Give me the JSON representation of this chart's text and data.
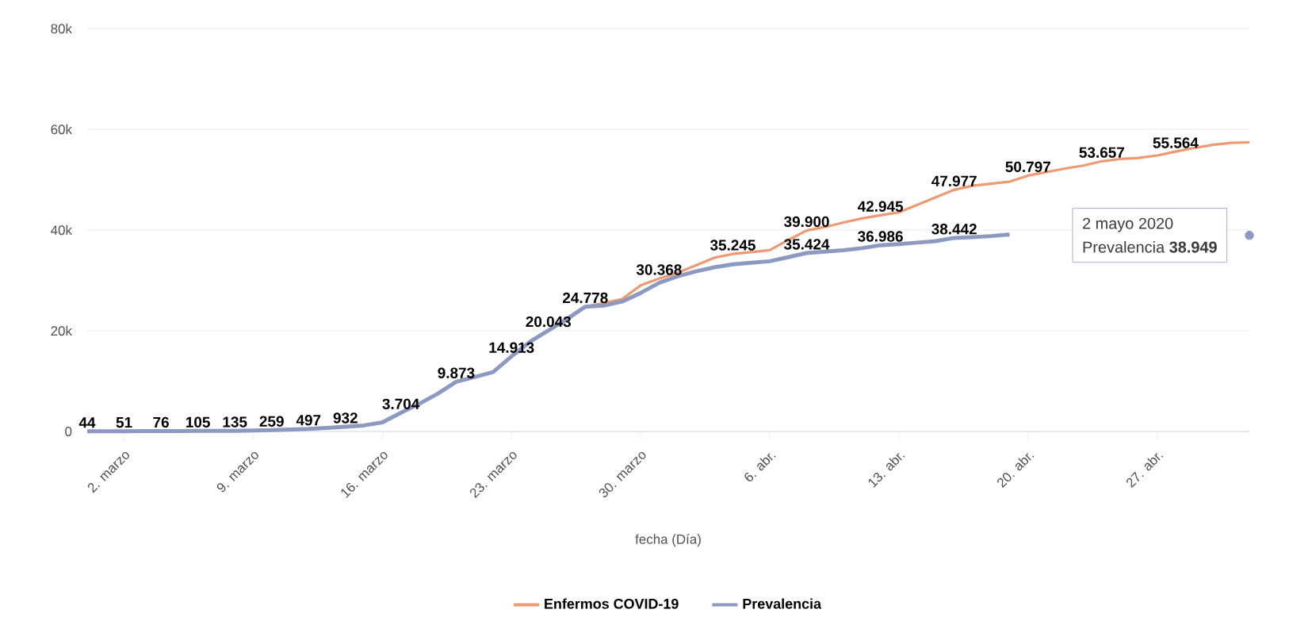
{
  "chart_data": {
    "type": "line",
    "xlabel": "fecha (Día)",
    "x": [
      "2020-02-29",
      "2020-03-01",
      "2020-03-02",
      "2020-03-03",
      "2020-03-04",
      "2020-03-05",
      "2020-03-06",
      "2020-03-07",
      "2020-03-08",
      "2020-03-09",
      "2020-03-10",
      "2020-03-11",
      "2020-03-12",
      "2020-03-13",
      "2020-03-14",
      "2020-03-15",
      "2020-03-16",
      "2020-03-17",
      "2020-03-18",
      "2020-03-19",
      "2020-03-20",
      "2020-03-21",
      "2020-03-22",
      "2020-03-23",
      "2020-03-24",
      "2020-03-25",
      "2020-03-26",
      "2020-03-27",
      "2020-03-28",
      "2020-03-29",
      "2020-03-30",
      "2020-03-31",
      "2020-04-01",
      "2020-04-02",
      "2020-04-03",
      "2020-04-04",
      "2020-04-05",
      "2020-04-06",
      "2020-04-07",
      "2020-04-08",
      "2020-04-09",
      "2020-04-10",
      "2020-04-11",
      "2020-04-12",
      "2020-04-13",
      "2020-04-14",
      "2020-04-15",
      "2020-04-16",
      "2020-04-17",
      "2020-04-18",
      "2020-04-19",
      "2020-04-20",
      "2020-04-21",
      "2020-04-22",
      "2020-04-23",
      "2020-04-24",
      "2020-04-25",
      "2020-04-26",
      "2020-04-27",
      "2020-04-28",
      "2020-04-29",
      "2020-04-30",
      "2020-05-01",
      "2020-05-02"
    ],
    "series": [
      {
        "name": "Enfermos COVID-19",
        "color": "#ed9a73",
        "values": [
          null,
          null,
          null,
          null,
          null,
          null,
          null,
          null,
          null,
          null,
          null,
          null,
          null,
          null,
          null,
          null,
          null,
          null,
          null,
          null,
          null,
          null,
          null,
          null,
          null,
          null,
          null,
          24778,
          25500,
          26300,
          29000,
          30368,
          31500,
          33000,
          34500,
          35245,
          35600,
          36000,
          38000,
          39900,
          40600,
          41500,
          42300,
          42945,
          43500,
          45000,
          46500,
          47977,
          48800,
          49200,
          49600,
          50797,
          51500,
          52200,
          52800,
          53657,
          54100,
          54300,
          54800,
          55564,
          56300,
          56900,
          57300,
          57400
        ],
        "value_labels": [
          null,
          null,
          null,
          null,
          null,
          null,
          null,
          null,
          null,
          null,
          null,
          null,
          null,
          null,
          null,
          null,
          null,
          null,
          null,
          null,
          null,
          null,
          null,
          null,
          null,
          null,
          null,
          "24.778",
          null,
          null,
          null,
          "30.368",
          null,
          null,
          null,
          "35.245",
          null,
          null,
          null,
          "39.900",
          null,
          null,
          null,
          "42.945",
          null,
          null,
          null,
          "47.977",
          null,
          null,
          null,
          "50.797",
          null,
          null,
          null,
          "53.657",
          null,
          null,
          null,
          "55.564",
          null,
          null,
          null,
          null
        ]
      },
      {
        "name": "Prevalencia",
        "color": "#8c99c0",
        "values": [
          44,
          50,
          51,
          60,
          76,
          90,
          105,
          120,
          135,
          200,
          259,
          400,
          497,
          700,
          932,
          1200,
          1800,
          3704,
          5500,
          7500,
          9873,
          10800,
          11800,
          14913,
          17800,
          20043,
          22300,
          24778,
          25000,
          25800,
          27500,
          29500,
          30800,
          31800,
          32600,
          33200,
          33500,
          33800,
          34600,
          35424,
          35700,
          36000,
          36400,
          36986,
          37200,
          37500,
          37800,
          38442,
          38600,
          38800,
          39100,
          null,
          null,
          null,
          null,
          null,
          null,
          null,
          null,
          null,
          null,
          null,
          null,
          38949
        ],
        "value_labels": [
          "44",
          null,
          "51",
          null,
          "76",
          null,
          "105",
          null,
          "135",
          null,
          "259",
          null,
          "497",
          null,
          "932",
          null,
          null,
          "3.704",
          null,
          null,
          "9.873",
          null,
          null,
          "14.913",
          null,
          "20.043",
          null,
          null,
          null,
          null,
          null,
          null,
          null,
          null,
          null,
          null,
          null,
          null,
          null,
          "35.424",
          null,
          null,
          null,
          "36.986",
          null,
          null,
          null,
          "38.442",
          null,
          null,
          null,
          null,
          null,
          null,
          null,
          null,
          null,
          null,
          null,
          null,
          null,
          null,
          null,
          null
        ]
      }
    ],
    "xlim": [
      "2020-02-29",
      "2020-05-02"
    ],
    "xticks": [
      {
        "value": "2020-03-02",
        "label": "2. marzo"
      },
      {
        "value": "2020-03-09",
        "label": "9. marzo"
      },
      {
        "value": "2020-03-16",
        "label": "16. marzo"
      },
      {
        "value": "2020-03-23",
        "label": "23. marzo"
      },
      {
        "value": "2020-03-30",
        "label": "30. marzo"
      },
      {
        "value": "2020-04-06",
        "label": "6. abr."
      },
      {
        "value": "2020-04-13",
        "label": "13. abr."
      },
      {
        "value": "2020-04-20",
        "label": "20. abr."
      },
      {
        "value": "2020-04-27",
        "label": "27. abr."
      }
    ],
    "ylim": [
      0,
      80000
    ],
    "yticks": [
      0,
      {
        "value": 20000,
        "label": "20k"
      },
      {
        "value": 40000,
        "label": "40k"
      },
      {
        "value": 60000,
        "label": "60k"
      },
      {
        "value": 80000,
        "label": "80k"
      }
    ],
    "grid": "y",
    "legend": "bottom",
    "annotations": [
      "2 mayo 2020",
      "Prevalencia **38.949**"
    ]
  }
}
